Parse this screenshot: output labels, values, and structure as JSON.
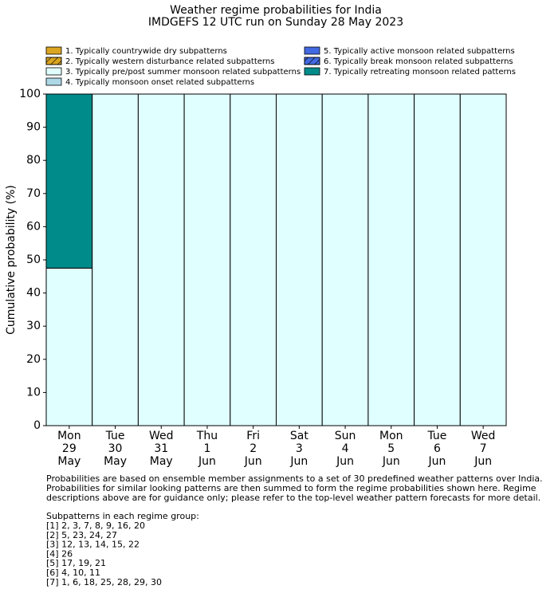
{
  "chart_data": {
    "type": "bar",
    "stacked": true,
    "title": "Weather regime probabilities for India",
    "subtitle": "IMDGEFS 12 UTC run on Sunday 28 May 2023",
    "y_label": "Cumulative probability (%)",
    "categories": [
      [
        "Mon",
        "29",
        "May"
      ],
      [
        "Tue",
        "30",
        "May"
      ],
      [
        "Wed",
        "31",
        "May"
      ],
      [
        "Thu",
        "1",
        "Jun"
      ],
      [
        "Fri",
        "2",
        "Jun"
      ],
      [
        "Sat",
        "3",
        "Jun"
      ],
      [
        "Sun",
        "4",
        "Jun"
      ],
      [
        "Mon",
        "5",
        "Jun"
      ],
      [
        "Tue",
        "6",
        "Jun"
      ],
      [
        "Wed",
        "7",
        "Jun"
      ]
    ],
    "series": [
      {
        "name": "1. Typically countrywide dry subpatterns",
        "color": "#daa520",
        "hatch": false,
        "values": [
          0,
          0,
          0,
          0,
          0,
          0,
          0,
          0,
          0,
          0
        ]
      },
      {
        "name": "2. Typically western disturbance related subpatterns",
        "color": "#daa520",
        "hatch": true,
        "values": [
          0,
          0,
          0,
          0,
          0,
          0,
          0,
          0,
          0,
          0
        ]
      },
      {
        "name": "3. Typically pre/post summer monsoon related subpatterns",
        "color": "#e0ffff",
        "hatch": false,
        "values": [
          47.5,
          100,
          100,
          100,
          100,
          100,
          100,
          100,
          100,
          100
        ]
      },
      {
        "name": "4. Typically monsoon onset related subpatterns",
        "color": "#add8e6",
        "hatch": false,
        "values": [
          0,
          0,
          0,
          0,
          0,
          0,
          0,
          0,
          0,
          0
        ]
      },
      {
        "name": "5. Typically active monsoon related subpatterns",
        "color": "#4169e1",
        "hatch": false,
        "values": [
          0,
          0,
          0,
          0,
          0,
          0,
          0,
          0,
          0,
          0
        ]
      },
      {
        "name": "6. Typically break monsoon related subpatterns",
        "color": "#4169e1",
        "hatch": true,
        "values": [
          0,
          0,
          0,
          0,
          0,
          0,
          0,
          0,
          0,
          0
        ]
      },
      {
        "name": "7. Typically retreating monsoon related patterns",
        "color": "#008b8b",
        "hatch": false,
        "values": [
          52.5,
          0,
          0,
          0,
          0,
          0,
          0,
          0,
          0,
          0
        ]
      }
    ],
    "ylim": [
      0,
      100
    ],
    "yticks": [
      0,
      10,
      20,
      30,
      40,
      50,
      60,
      70,
      80,
      90,
      100
    ],
    "grid": false,
    "notes": [
      "Probabilities are based on ensemble member assignments to a set of 30 predefined weather patterns over India.",
      "Probabilities for similar looking patterns are then summed to form the regime probabilities shown here. Regime",
      "descriptions above are for guidance only; please refer to the top-level weather pattern forecasts for more detail."
    ],
    "subpatterns_title": "Subpatterns in each regime group:",
    "subpatterns": [
      "[1] 2, 3, 7, 8, 9, 16, 20",
      "[2] 5, 23, 24, 27",
      "[3] 12, 13, 14, 15, 22",
      "[4] 26",
      "[5] 17, 19, 21",
      "[6] 4, 10, 11",
      "[7] 1, 6, 18, 25, 28, 29, 30"
    ]
  }
}
